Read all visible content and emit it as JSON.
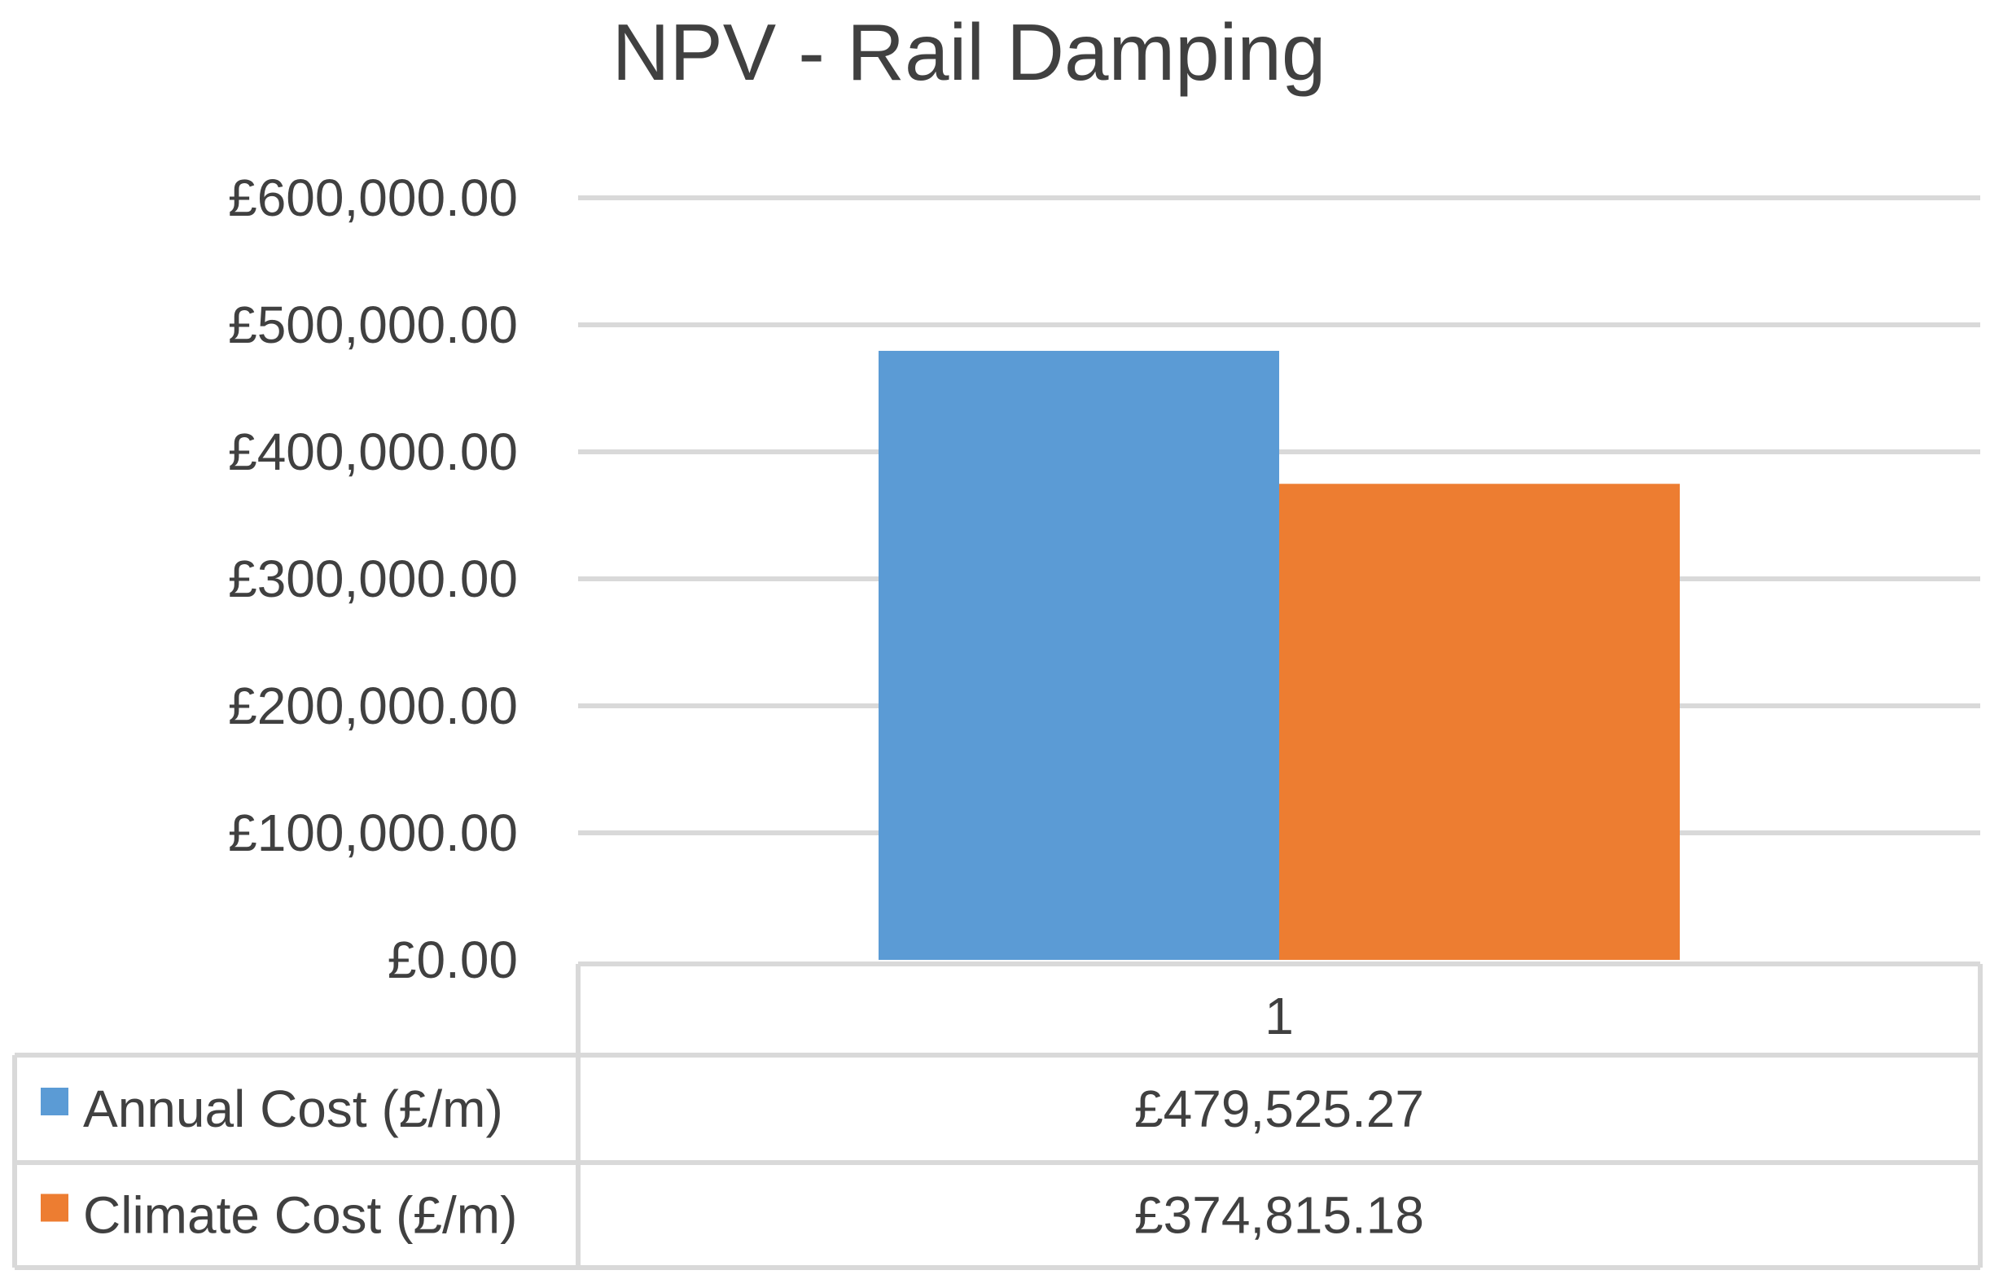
{
  "chart_data": {
    "type": "bar",
    "title": "NPV - Rail Damping",
    "categories": [
      "1"
    ],
    "series": [
      {
        "name": "Annual Cost (£/m)",
        "values": [
          479525.27
        ],
        "value_labels": [
          "£479,525.27"
        ],
        "color": "#5b9bd5"
      },
      {
        "name": "Climate Cost (£/m)",
        "values": [
          374815.18
        ],
        "value_labels": [
          "£374,815.18"
        ],
        "color": "#ed7d31"
      }
    ],
    "ylim": [
      0,
      600000
    ],
    "yticks": [
      0,
      100000,
      200000,
      300000,
      400000,
      500000,
      600000
    ],
    "ytick_labels": [
      "£0.00",
      "£100,000.00",
      "£200,000.00",
      "£300,000.00",
      "£400,000.00",
      "£500,000.00",
      "£600,000.00"
    ],
    "grid": true,
    "data_table": true,
    "xlabel": "",
    "ylabel": ""
  }
}
